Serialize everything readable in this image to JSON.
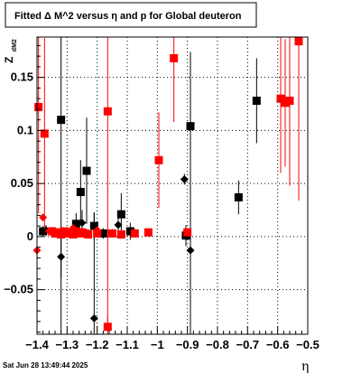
{
  "chart_data": {
    "type": "scatter",
    "title": "Fitted Δ M^2 versus η and p for Global deuteron",
    "xlabel": "η",
    "ylabel": "Z",
    "ylabel_sub": "dM2",
    "xlim": [
      -1.4,
      -0.5
    ],
    "ylim": [
      -0.092,
      0.188
    ],
    "x_ticks": [
      -1.4,
      -1.3,
      -1.2,
      -1.1,
      -1.0,
      -0.9,
      -0.8,
      -0.7,
      -0.6,
      -0.5
    ],
    "x_tick_labels": [
      "−1.4",
      "−1.3",
      "−1.2",
      "−1.1",
      "−1",
      "−0.9",
      "−0.8",
      "−0.7",
      "−0.6",
      "−0.5"
    ],
    "y_ticks": [
      -0.05,
      0,
      0.05,
      0.1,
      0.15
    ],
    "y_tick_labels": [
      "−0.05",
      "0",
      "0.05",
      "0.1",
      "0.15"
    ],
    "grid": true,
    "timestamp": "Sat Jun 28 13:49:44 2025",
    "series": [
      {
        "marker": "square",
        "color": "#000000",
        "points": [
          {
            "x": -1.32,
            "y": 0.11,
            "err": 0.2
          },
          {
            "x": -1.27,
            "y": 0.012,
            "err": 0.01
          },
          {
            "x": -1.255,
            "y": 0.042,
            "err": 0.03
          },
          {
            "x": -1.235,
            "y": 0.062,
            "err": 0.05
          },
          {
            "x": -1.21,
            "y": 0.01,
            "err": 0.012
          },
          {
            "x": -1.18,
            "y": 0.003,
            "err": 0.005
          },
          {
            "x": -1.12,
            "y": 0.021,
            "err": 0.02
          },
          {
            "x": -1.09,
            "y": 0.005,
            "err": 0.008
          },
          {
            "x": -0.905,
            "y": 0.001,
            "err": 0.01
          },
          {
            "x": -0.89,
            "y": 0.104,
            "err": 0.07
          },
          {
            "x": -0.73,
            "y": 0.037,
            "err": 0.016
          },
          {
            "x": -0.67,
            "y": 0.128,
            "err": 0.04
          },
          {
            "x": -1.38,
            "y": 0.005,
            "err": 0.005
          },
          {
            "x": -1.3,
            "y": 0.004,
            "err": 0.004
          }
        ]
      },
      {
        "marker": "diamond",
        "color": "#000000",
        "points": [
          {
            "x": -1.37,
            "y": 0.006,
            "err": 0.005
          },
          {
            "x": -1.32,
            "y": -0.019,
            "err": 0.02
          },
          {
            "x": -1.25,
            "y": 0.013,
            "err": 0.012
          },
          {
            "x": -1.21,
            "y": -0.077,
            "err": 0.1
          },
          {
            "x": -1.13,
            "y": 0.011,
            "err": 0.01
          },
          {
            "x": -0.91,
            "y": 0.054,
            "err": 0.005
          },
          {
            "x": -0.89,
            "y": -0.013,
            "err": 0.1
          }
        ]
      },
      {
        "marker": "square",
        "color": "#ff0000",
        "points": [
          {
            "x": -1.395,
            "y": 0.122,
            "err": 0.1
          },
          {
            "x": -1.375,
            "y": 0.097,
            "err": 0.09
          },
          {
            "x": -1.35,
            "y": 0.005,
            "err": 0.004
          },
          {
            "x": -1.34,
            "y": 0.003,
            "err": 0.003
          },
          {
            "x": -1.33,
            "y": 0.004,
            "err": 0.003
          },
          {
            "x": -1.32,
            "y": 0.002,
            "err": 0.003
          },
          {
            "x": -1.31,
            "y": 0.005,
            "err": 0.003
          },
          {
            "x": -1.3,
            "y": 0.003,
            "err": 0.003
          },
          {
            "x": -1.29,
            "y": 0.004,
            "err": 0.003
          },
          {
            "x": -1.28,
            "y": 0.002,
            "err": 0.003
          },
          {
            "x": -1.27,
            "y": 0.005,
            "err": 0.003
          },
          {
            "x": -1.26,
            "y": 0.003,
            "err": 0.003
          },
          {
            "x": -1.25,
            "y": 0.004,
            "err": 0.003
          },
          {
            "x": -1.24,
            "y": 0.003,
            "err": 0.003
          },
          {
            "x": -1.23,
            "y": 0.002,
            "err": 0.003
          },
          {
            "x": -1.2,
            "y": 0.003,
            "err": 0.003
          },
          {
            "x": -1.165,
            "y": 0.118,
            "err": 0.2
          },
          {
            "x": -1.15,
            "y": 0.003,
            "err": 0.004
          },
          {
            "x": -1.12,
            "y": 0.002,
            "err": 0.004
          },
          {
            "x": -1.075,
            "y": 0.003,
            "err": 0.004
          },
          {
            "x": -1.03,
            "y": 0.004,
            "err": 0.004
          },
          {
            "x": -0.995,
            "y": 0.072,
            "err": 0.045
          },
          {
            "x": -0.945,
            "y": 0.168,
            "err": 0.06
          },
          {
            "x": -0.9,
            "y": 0.004,
            "err": 0.004
          },
          {
            "x": -0.59,
            "y": 0.13,
            "err": 0.07
          },
          {
            "x": -0.575,
            "y": 0.126,
            "err": 0.06
          },
          {
            "x": -0.56,
            "y": 0.128,
            "err": 0.08
          },
          {
            "x": -0.53,
            "y": 0.184,
            "err": 0.15
          },
          {
            "x": -1.165,
            "y": -0.085,
            "err": 0.01
          }
        ]
      },
      {
        "marker": "diamond",
        "color": "#ff0000",
        "points": [
          {
            "x": -1.4,
            "y": -0.013,
            "err": 0.07
          },
          {
            "x": -1.38,
            "y": 0.018,
            "err": 0.002
          },
          {
            "x": -1.36,
            "y": 0.005,
            "err": 0.003
          },
          {
            "x": -1.28,
            "y": 0.008,
            "err": 0.003
          },
          {
            "x": -1.2,
            "y": 0.006,
            "err": 0.003
          }
        ]
      }
    ]
  }
}
